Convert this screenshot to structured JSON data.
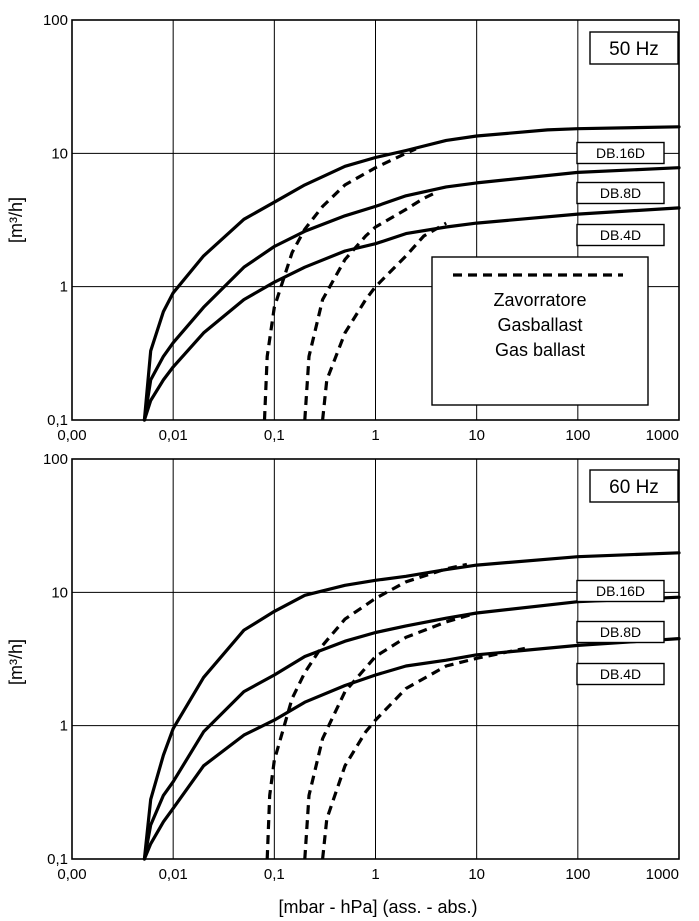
{
  "chart_data": [
    {
      "type": "line",
      "title": "50 Hz",
      "xscale": "log",
      "yscale": "log",
      "xlim": [
        0.001,
        1000
      ],
      "ylim": [
        0.1,
        100
      ],
      "x_ticks": [
        "0,00",
        "0,01",
        "0,1",
        "1",
        "10",
        "100",
        "1000"
      ],
      "y_ticks": [
        "0,1",
        "1",
        "10",
        "100"
      ],
      "xlabel": "",
      "ylabel": "[m³/h]",
      "grid": true,
      "series": [
        {
          "name": "DB.16D",
          "style": "solid",
          "points": [
            [
              0.0052,
              0.1
            ],
            [
              0.006,
              0.33
            ],
            [
              0.008,
              0.65
            ],
            [
              0.01,
              0.9
            ],
            [
              0.02,
              1.7
            ],
            [
              0.05,
              3.2
            ],
            [
              0.1,
              4.3
            ],
            [
              0.2,
              5.8
            ],
            [
              0.5,
              8.0
            ],
            [
              1,
              9.3
            ],
            [
              2,
              10.5
            ],
            [
              5,
              12.5
            ],
            [
              10,
              13.5
            ],
            [
              50,
              15.0
            ],
            [
              100,
              15.3
            ],
            [
              1000,
              15.8
            ]
          ]
        },
        {
          "name": "DB.8D",
          "style": "solid",
          "points": [
            [
              0.0052,
              0.1
            ],
            [
              0.006,
              0.2
            ],
            [
              0.008,
              0.3
            ],
            [
              0.01,
              0.38
            ],
            [
              0.02,
              0.7
            ],
            [
              0.05,
              1.4
            ],
            [
              0.1,
              2.0
            ],
            [
              0.2,
              2.6
            ],
            [
              0.5,
              3.4
            ],
            [
              1,
              4.0
            ],
            [
              2,
              4.8
            ],
            [
              5,
              5.6
            ],
            [
              10,
              6.0
            ],
            [
              100,
              7.2
            ],
            [
              1000,
              7.8
            ]
          ]
        },
        {
          "name": "DB.4D",
          "style": "solid",
          "points": [
            [
              0.0052,
              0.1
            ],
            [
              0.006,
              0.14
            ],
            [
              0.008,
              0.2
            ],
            [
              0.01,
              0.25
            ],
            [
              0.02,
              0.45
            ],
            [
              0.05,
              0.8
            ],
            [
              0.1,
              1.08
            ],
            [
              0.2,
              1.4
            ],
            [
              0.5,
              1.85
            ],
            [
              1,
              2.1
            ],
            [
              2,
              2.5
            ],
            [
              5,
              2.8
            ],
            [
              10,
              3.0
            ],
            [
              100,
              3.5
            ],
            [
              1000,
              3.9
            ]
          ]
        },
        {
          "name": "",
          "style": "dashed",
          "points": [
            [
              0.08,
              0.1
            ],
            [
              0.085,
              0.3
            ],
            [
              0.1,
              0.7
            ],
            [
              0.15,
              1.8
            ],
            [
              0.2,
              2.7
            ],
            [
              0.3,
              4.0
            ],
            [
              0.5,
              5.8
            ],
            [
              1,
              7.8
            ],
            [
              2,
              10.0
            ],
            [
              2.5,
              10.8
            ]
          ]
        },
        {
          "name": "",
          "style": "dashed",
          "points": [
            [
              0.2,
              0.1
            ],
            [
              0.22,
              0.3
            ],
            [
              0.3,
              0.8
            ],
            [
              0.5,
              1.6
            ],
            [
              0.8,
              2.4
            ],
            [
              1,
              2.8
            ],
            [
              2,
              3.8
            ],
            [
              3,
              4.6
            ],
            [
              4,
              5.1
            ]
          ]
        },
        {
          "name": "",
          "style": "dashed",
          "points": [
            [
              0.3,
              0.1
            ],
            [
              0.33,
              0.2
            ],
            [
              0.5,
              0.45
            ],
            [
              0.8,
              0.8
            ],
            [
              1,
              1.0
            ],
            [
              2,
              1.7
            ],
            [
              3,
              2.4
            ],
            [
              5,
              3.0
            ]
          ]
        }
      ],
      "legend": {
        "dashed_label": [
          "Zavorratore",
          "Gasballast",
          "Gas ballast"
        ]
      }
    },
    {
      "type": "line",
      "title": "60 Hz",
      "xscale": "log",
      "yscale": "log",
      "xlim": [
        0.001,
        1000
      ],
      "ylim": [
        0.1,
        100
      ],
      "x_ticks": [
        "0,00",
        "0,01",
        "0,1",
        "1",
        "10",
        "100",
        "1000"
      ],
      "y_ticks": [
        "0,1",
        "1",
        "10",
        "100"
      ],
      "xlabel": "[mbar - hPa] (ass. - abs.)",
      "ylabel": "[m³/h]",
      "grid": true,
      "series": [
        {
          "name": "DB.16D",
          "style": "solid",
          "points": [
            [
              0.0052,
              0.1
            ],
            [
              0.006,
              0.28
            ],
            [
              0.008,
              0.6
            ],
            [
              0.01,
              0.95
            ],
            [
              0.02,
              2.3
            ],
            [
              0.05,
              5.2
            ],
            [
              0.1,
              7.2
            ],
            [
              0.2,
              9.5
            ],
            [
              0.5,
              11.3
            ],
            [
              1,
              12.3
            ],
            [
              2,
              13.2
            ],
            [
              5,
              14.8
            ],
            [
              10,
              16.0
            ],
            [
              100,
              18.5
            ],
            [
              1000,
              19.8
            ]
          ]
        },
        {
          "name": "DB.8D",
          "style": "solid",
          "points": [
            [
              0.0052,
              0.1
            ],
            [
              0.006,
              0.18
            ],
            [
              0.008,
              0.3
            ],
            [
              0.01,
              0.38
            ],
            [
              0.02,
              0.9
            ],
            [
              0.05,
              1.8
            ],
            [
              0.1,
              2.4
            ],
            [
              0.2,
              3.3
            ],
            [
              0.5,
              4.3
            ],
            [
              1,
              5.0
            ],
            [
              2,
              5.6
            ],
            [
              5,
              6.4
            ],
            [
              10,
              7.0
            ],
            [
              100,
              8.5
            ],
            [
              1000,
              9.2
            ]
          ]
        },
        {
          "name": "DB.4D",
          "style": "solid",
          "points": [
            [
              0.0052,
              0.1
            ],
            [
              0.006,
              0.13
            ],
            [
              0.008,
              0.19
            ],
            [
              0.01,
              0.24
            ],
            [
              0.02,
              0.5
            ],
            [
              0.05,
              0.85
            ],
            [
              0.1,
              1.1
            ],
            [
              0.2,
              1.5
            ],
            [
              0.5,
              2.0
            ],
            [
              1,
              2.4
            ],
            [
              2,
              2.8
            ],
            [
              5,
              3.1
            ],
            [
              10,
              3.4
            ],
            [
              100,
              4.0
            ],
            [
              1000,
              4.5
            ]
          ]
        },
        {
          "name": "",
          "style": "dashed",
          "points": [
            [
              0.085,
              0.1
            ],
            [
              0.09,
              0.3
            ],
            [
              0.1,
              0.55
            ],
            [
              0.15,
              1.6
            ],
            [
              0.2,
              2.5
            ],
            [
              0.3,
              4.0
            ],
            [
              0.5,
              6.3
            ],
            [
              1,
              9.0
            ],
            [
              2,
              12.0
            ],
            [
              5,
              15.0
            ],
            [
              8,
              16.2
            ]
          ]
        },
        {
          "name": "",
          "style": "dashed",
          "points": [
            [
              0.2,
              0.1
            ],
            [
              0.22,
              0.3
            ],
            [
              0.3,
              0.8
            ],
            [
              0.5,
              1.8
            ],
            [
              1,
              3.3
            ],
            [
              2,
              4.6
            ],
            [
              5,
              6.0
            ],
            [
              10,
              7.0
            ]
          ]
        },
        {
          "name": "",
          "style": "dashed",
          "points": [
            [
              0.3,
              0.1
            ],
            [
              0.33,
              0.2
            ],
            [
              0.5,
              0.5
            ],
            [
              0.8,
              0.9
            ],
            [
              1,
              1.1
            ],
            [
              2,
              1.9
            ],
            [
              5,
              2.8
            ],
            [
              10,
              3.2
            ],
            [
              30,
              3.8
            ]
          ]
        }
      ]
    }
  ]
}
